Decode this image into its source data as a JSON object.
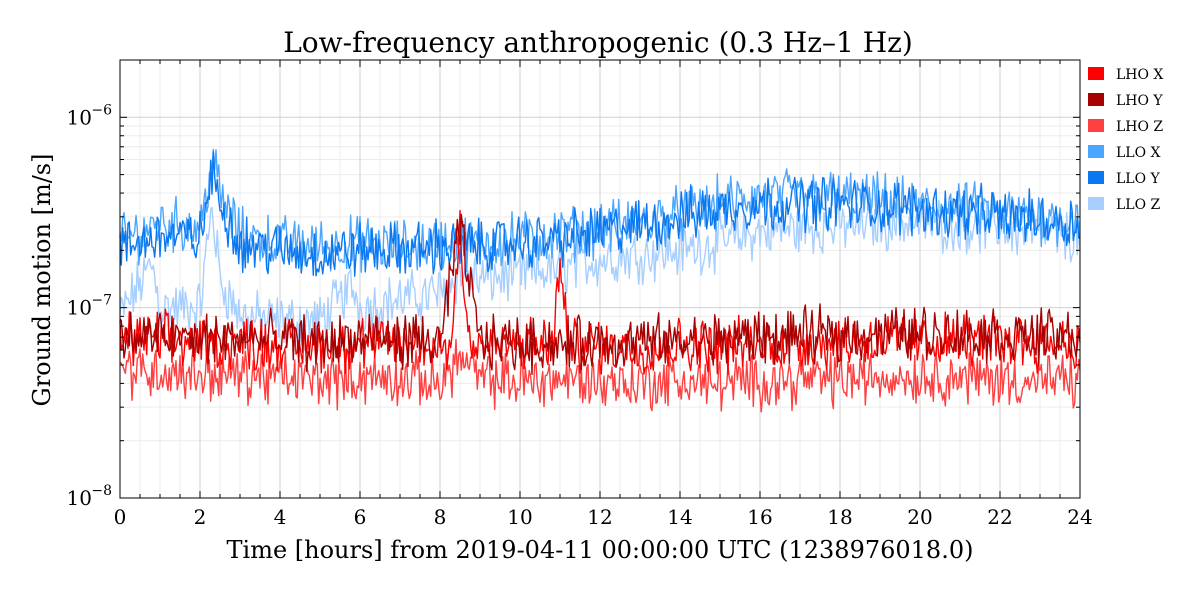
{
  "chart_data": {
    "type": "line",
    "title": "Low-frequency anthropogenic (0.3 Hz–1 Hz)",
    "xlabel": "Time [hours] from 2019-04-11 00:00:00 UTC (1238976018.0)",
    "ylabel": "Ground motion [m/s]",
    "xlim": [
      0,
      24
    ],
    "ylim": [
      1e-08,
      2e-06
    ],
    "yscale": "log",
    "x_ticks": [
      "0",
      "2",
      "4",
      "6",
      "8",
      "10",
      "12",
      "14",
      "16",
      "18",
      "20",
      "22",
      "24"
    ],
    "y_ticks": [
      {
        "base": "10",
        "exp": "−8",
        "value": 1e-08
      },
      {
        "base": "10",
        "exp": "−7",
        "value": 1e-07
      },
      {
        "base": "10",
        "exp": "−6",
        "value": 1e-06
      }
    ],
    "grid": true,
    "legend_position": "right-top",
    "series": [
      {
        "name": "LHO X",
        "color": "#ff0000",
        "x": [
          0,
          1,
          2,
          3,
          4,
          5,
          6,
          7,
          8,
          8.3,
          8.5,
          8.7,
          9,
          10,
          10.8,
          11,
          11.2,
          12,
          13,
          14,
          15,
          16,
          17,
          18,
          19,
          20,
          21,
          22,
          23,
          24
        ],
        "y": [
          7e-08,
          6.8e-08,
          6.5e-08,
          6.6e-08,
          6.4e-08,
          6.3e-08,
          6.5e-08,
          6.4e-08,
          6.3e-08,
          6.5e-08,
          3e-07,
          7e-08,
          6.4e-08,
          6.3e-08,
          6.4e-08,
          1.6e-07,
          6.5e-08,
          6.3e-08,
          6.2e-08,
          6.4e-08,
          6.3e-08,
          6.4e-08,
          6.5e-08,
          6.6e-08,
          6.7e-08,
          6.6e-08,
          6.8e-08,
          6.7e-08,
          6.6e-08,
          6.5e-08
        ]
      },
      {
        "name": "LHO Y",
        "color": "#a60000",
        "x": [
          0,
          1,
          2,
          3,
          4,
          5,
          6,
          7,
          8,
          8.5,
          9,
          10,
          11,
          12,
          13,
          14,
          15,
          16,
          17,
          18,
          19,
          20,
          21,
          22,
          23,
          24
        ],
        "y": [
          7e-08,
          7e-08,
          6.8e-08,
          6.9e-08,
          6.7e-08,
          6.6e-08,
          6.8e-08,
          6.7e-08,
          6.6e-08,
          2.6e-07,
          6.6e-08,
          6.5e-08,
          6.4e-08,
          6.5e-08,
          6.6e-08,
          6.6e-08,
          6.8e-08,
          7e-08,
          7.1e-08,
          7.2e-08,
          7.3e-08,
          7.4e-08,
          7.3e-08,
          7.2e-08,
          7.1e-08,
          7e-08
        ]
      },
      {
        "name": "LHO Z",
        "color": "#ff4040",
        "x": [
          0,
          1,
          2,
          3,
          4,
          5,
          6,
          7,
          8,
          8.5,
          9,
          10,
          11,
          12,
          13,
          14,
          15,
          16,
          17,
          18,
          19,
          20,
          21,
          22,
          23,
          24
        ],
        "y": [
          4.8e-08,
          4.6e-08,
          4.5e-08,
          4.4e-08,
          4.3e-08,
          4.2e-08,
          4.3e-08,
          4.2e-08,
          4.1e-08,
          5.5e-08,
          4.2e-08,
          4.1e-08,
          4.2e-08,
          4.1e-08,
          4e-08,
          4.1e-08,
          4e-08,
          4.1e-08,
          4.2e-08,
          4.2e-08,
          4.3e-08,
          4.4e-08,
          4.3e-08,
          4.2e-08,
          4.1e-08,
          4.1e-08
        ]
      },
      {
        "name": "LLO X",
        "color": "#4ba6ff",
        "x": [
          0,
          1,
          2,
          2.3,
          2.6,
          3,
          4,
          5,
          6,
          7,
          8,
          9,
          10,
          11,
          12,
          13,
          14,
          15,
          16,
          17,
          18,
          19,
          20,
          21,
          22,
          23,
          24
        ],
        "y": [
          2.2e-07,
          2.8e-07,
          2.6e-07,
          6e-07,
          3.5e-07,
          2.4e-07,
          2.2e-07,
          2.1e-07,
          2.2e-07,
          2.1e-07,
          2.2e-07,
          2.2e-07,
          2.3e-07,
          2.4e-07,
          2.6e-07,
          2.8e-07,
          3.1e-07,
          3.5e-07,
          3.8e-07,
          3.9e-07,
          3.8e-07,
          3.6e-07,
          3.4e-07,
          3.3e-07,
          3.1e-07,
          3e-07,
          2.9e-07
        ]
      },
      {
        "name": "LLO Y",
        "color": "#0a78f0",
        "x": [
          0,
          1,
          2,
          2.3,
          2.6,
          3,
          4,
          5,
          6,
          7,
          8,
          9,
          10,
          11,
          12,
          13,
          14,
          15,
          16,
          17,
          18,
          19,
          20,
          21,
          22,
          23,
          24
        ],
        "y": [
          2e-07,
          2.4e-07,
          2.3e-07,
          5e-07,
          3.2e-07,
          2.2e-07,
          2e-07,
          1.9e-07,
          2e-07,
          2e-07,
          2.1e-07,
          2.1e-07,
          2.2e-07,
          2.3e-07,
          2.5e-07,
          2.7e-07,
          3e-07,
          3.3e-07,
          3.5e-07,
          3.6e-07,
          3.5e-07,
          3.4e-07,
          3.3e-07,
          3.2e-07,
          3e-07,
          2.9e-07,
          2.8e-07
        ]
      },
      {
        "name": "LLO Z",
        "color": "#a6cfff",
        "x": [
          0,
          0.8,
          1,
          2,
          2.3,
          2.5,
          3,
          4,
          5,
          5.8,
          6,
          7,
          8,
          8.5,
          9,
          10,
          11,
          12,
          13,
          14,
          15,
          16,
          17,
          18,
          19,
          20,
          21,
          22,
          23,
          24
        ],
        "y": [
          9e-08,
          1.7e-07,
          1e-07,
          1e-07,
          3.5e-07,
          1.4e-07,
          9e-08,
          8.5e-08,
          8.5e-08,
          1.3e-07,
          1e-07,
          1.1e-07,
          1.2e-07,
          1.5e-07,
          1.4e-07,
          1.5e-07,
          1.6e-07,
          1.8e-07,
          1.9e-07,
          2e-07,
          2.2e-07,
          2.5e-07,
          2.6e-07,
          2.7e-07,
          2.8e-07,
          2.8e-07,
          2.7e-07,
          2.6e-07,
          2.5e-07,
          2.3e-07
        ]
      }
    ]
  }
}
